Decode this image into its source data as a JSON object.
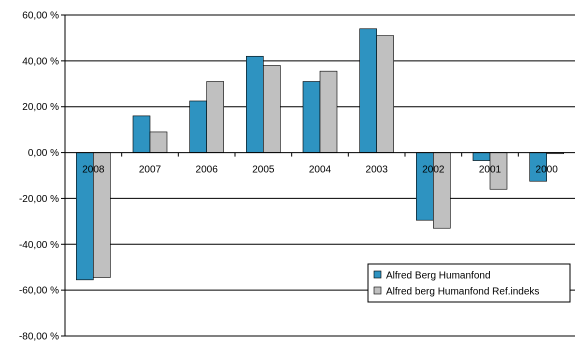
{
  "chart_data": {
    "type": "bar",
    "categories": [
      "2008",
      "2007",
      "2006",
      "2005",
      "2004",
      "2003",
      "2002",
      "2001",
      "2000"
    ],
    "series": [
      {
        "name": "Alfred Berg Humanfond",
        "color": "#2e93c1",
        "values": [
          -55.5,
          16.0,
          22.5,
          42.0,
          31.0,
          54.0,
          -29.5,
          -3.5,
          -12.5
        ]
      },
      {
        "name": "Alfred berg Humanfond Ref.indeks",
        "color": "#c0c0c0",
        "values": [
          -54.5,
          9.0,
          31.0,
          38.0,
          35.5,
          51.0,
          -33.0,
          -16.0,
          -0.5
        ]
      }
    ],
    "ylim": [
      -80,
      60
    ],
    "yticks": [
      60,
      40,
      20,
      0,
      -20,
      -40,
      -60,
      -80
    ],
    "ytick_labels": [
      "60,00 %",
      "40,00 %",
      "20,00 %",
      "0,00 %",
      "-20,00 %",
      "-40,00 %",
      "-60,00 %",
      "-80,00 %"
    ],
    "grid": true,
    "legend_position": "lower-right",
    "title": "",
    "xlabel": "",
    "ylabel": ""
  }
}
